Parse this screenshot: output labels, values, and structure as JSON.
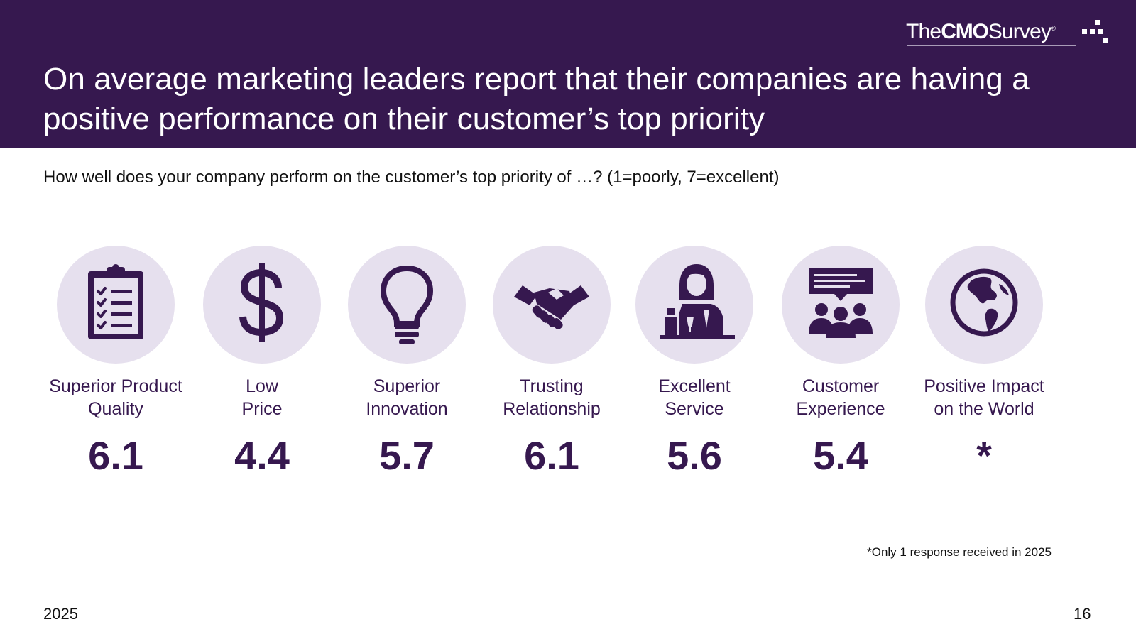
{
  "header": {
    "title": "On average marketing leaders report that their companies are having a positive performance on their customer’s top priority",
    "logo": {
      "the": "The",
      "cmo": "CMO",
      "survey": "Survey",
      "mark": "®"
    }
  },
  "question": "How well does your company perform on the customer’s top priority of …? (1=poorly, 7=excellent)",
  "priorities": [
    {
      "label_line1": "Superior Product",
      "label_line2": "Quality",
      "value": "6.1",
      "icon": "clipboard-checklist-icon"
    },
    {
      "label_line1": "Low",
      "label_line2": "Price",
      "value": "4.4",
      "icon": "dollar-sign-icon"
    },
    {
      "label_line1": "Superior",
      "label_line2": "Innovation",
      "value": "5.7",
      "icon": "lightbulb-icon"
    },
    {
      "label_line1": "Trusting",
      "label_line2": "Relationship",
      "value": "6.1",
      "icon": "handshake-icon"
    },
    {
      "label_line1": "Excellent",
      "label_line2": "Service",
      "value": "5.6",
      "icon": "server-person-icon"
    },
    {
      "label_line1": "Customer",
      "label_line2": "Experience",
      "value": "5.4",
      "icon": "group-chat-icon"
    },
    {
      "label_line1": "Positive Impact",
      "label_line2": "on the World",
      "value": "*",
      "icon": "globe-icon"
    }
  ],
  "footnote": "*Only 1 response received in 2025",
  "footer": {
    "year": "2025",
    "page": "16"
  },
  "colors": {
    "brand_purple": "#36184f",
    "circle_fill": "#e6e0ee"
  }
}
